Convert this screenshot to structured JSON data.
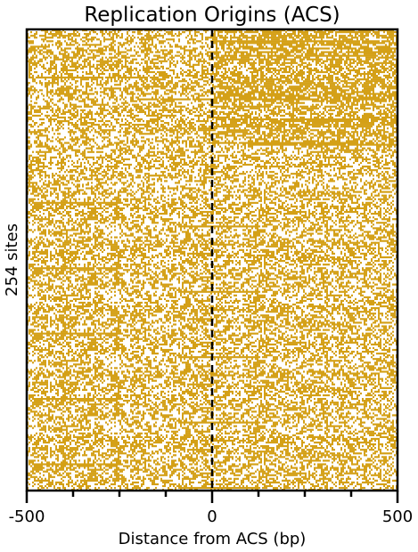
{
  "chart_data": {
    "type": "heatmap",
    "title": "Replication Origins (ACS)",
    "xlabel": "Distance from ACS (bp)",
    "ylabel": "254 sites",
    "xlim": [
      -500,
      500
    ],
    "x_ticks": [
      -500,
      0,
      500
    ],
    "x_tick_labels": [
      "-500",
      "0",
      "500"
    ],
    "minor_x_ticks": [
      -375,
      -250,
      -125,
      125,
      250,
      375
    ],
    "rows": 254,
    "mark_color": "#d4a017",
    "background_color": "#ffffff",
    "reference_line": {
      "x": 0,
      "style": "dashed",
      "color": "#000000"
    }
  }
}
